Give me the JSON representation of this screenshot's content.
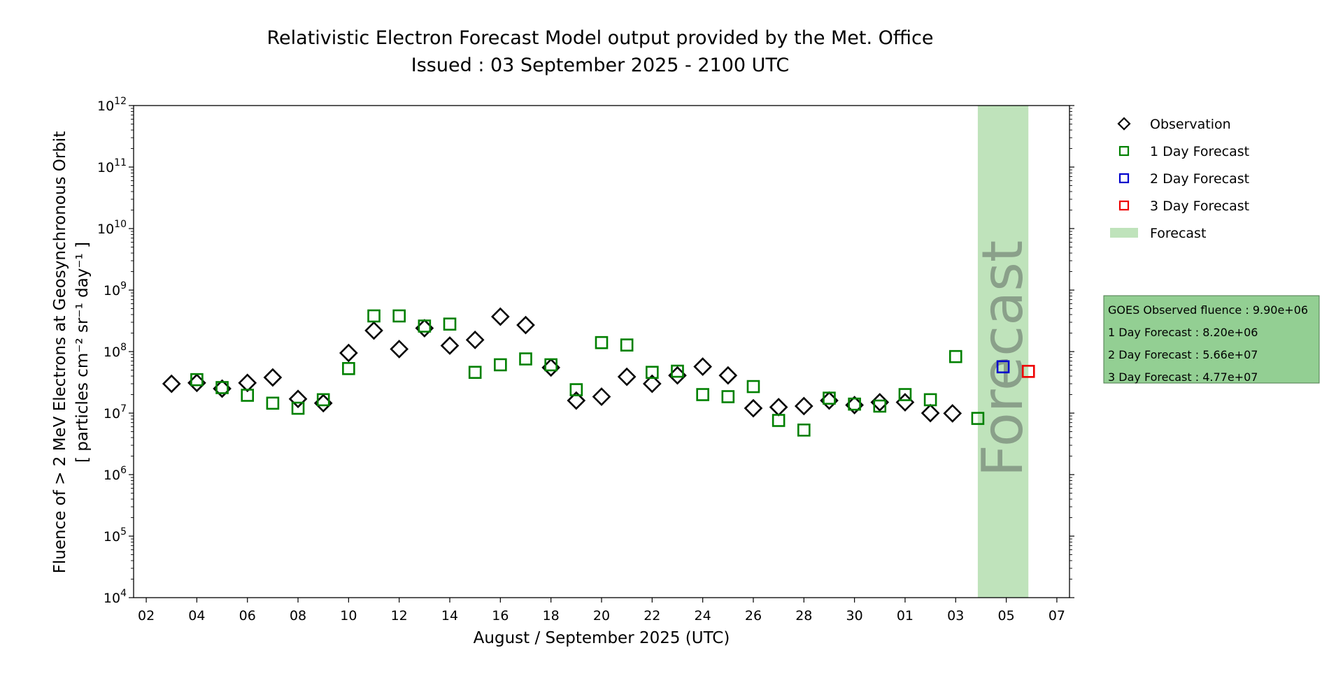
{
  "chart_data": {
    "type": "scatter",
    "title": "Relativistic Electron Forecast Model output provided by the Met. Office",
    "subtitle": "Issued : 03 September 2025 - 2100 UTC",
    "xlabel": "August / September 2025 (UTC)",
    "ylabel_line1": "Fluence of > 2 MeV Electrons at Geosynchronous Orbit",
    "ylabel_line2": "[ particles cm⁻² sr⁻¹ day⁻¹ ]",
    "y_scale": "log",
    "ylim": [
      10000,
      1000000000000
    ],
    "y_ticks": [
      {
        "value": 10000,
        "base": "10",
        "exp": "4"
      },
      {
        "value": 100000,
        "base": "10",
        "exp": "5"
      },
      {
        "value": 1000000,
        "base": "10",
        "exp": "6"
      },
      {
        "value": 10000000,
        "base": "10",
        "exp": "7"
      },
      {
        "value": 100000000,
        "base": "10",
        "exp": "8"
      },
      {
        "value": 1000000000,
        "base": "10",
        "exp": "9"
      },
      {
        "value": 10000000000,
        "base": "10",
        "exp": "10"
      },
      {
        "value": 100000000000,
        "base": "10",
        "exp": "11"
      },
      {
        "value": 1000000000000,
        "base": "10",
        "exp": "12"
      }
    ],
    "xlim": [
      "2025-08-01T12:00",
      "2025-09-07T12:00"
    ],
    "x_ticks": [
      {
        "date": "2025-08-02",
        "label": "02"
      },
      {
        "date": "2025-08-04",
        "label": "04"
      },
      {
        "date": "2025-08-06",
        "label": "06"
      },
      {
        "date": "2025-08-08",
        "label": "08"
      },
      {
        "date": "2025-08-10",
        "label": "10"
      },
      {
        "date": "2025-08-12",
        "label": "12"
      },
      {
        "date": "2025-08-14",
        "label": "14"
      },
      {
        "date": "2025-08-16",
        "label": "16"
      },
      {
        "date": "2025-08-18",
        "label": "18"
      },
      {
        "date": "2025-08-20",
        "label": "20"
      },
      {
        "date": "2025-08-22",
        "label": "22"
      },
      {
        "date": "2025-08-24",
        "label": "24"
      },
      {
        "date": "2025-08-26",
        "label": "26"
      },
      {
        "date": "2025-08-28",
        "label": "28"
      },
      {
        "date": "2025-08-30",
        "label": "30"
      },
      {
        "date": "2025-09-01",
        "label": "01"
      },
      {
        "date": "2025-09-03",
        "label": "03"
      },
      {
        "date": "2025-09-05",
        "label": "05"
      },
      {
        "date": "2025-09-07",
        "label": "07"
      }
    ],
    "forecast_region": {
      "start": "2025-09-03T21:00",
      "end": "2025-09-05T21:00",
      "label": "Forecast",
      "color": "#bfe3bb"
    },
    "series": [
      {
        "name": "Observation",
        "marker": "diamond",
        "color": "#000000",
        "points": [
          {
            "x": "2025-08-03",
            "y": 30000000.0
          },
          {
            "x": "2025-08-04",
            "y": 31000000.0
          },
          {
            "x": "2025-08-05",
            "y": 25000000.0
          },
          {
            "x": "2025-08-06",
            "y": 31000000.0
          },
          {
            "x": "2025-08-07",
            "y": 38000000.0
          },
          {
            "x": "2025-08-08",
            "y": 17000000.0
          },
          {
            "x": "2025-08-09",
            "y": 14500000.0
          },
          {
            "x": "2025-08-10",
            "y": 95000000.0
          },
          {
            "x": "2025-08-11",
            "y": 220000000.0
          },
          {
            "x": "2025-08-12",
            "y": 110000000.0
          },
          {
            "x": "2025-08-13",
            "y": 240000000.0
          },
          {
            "x": "2025-08-14",
            "y": 125000000.0
          },
          {
            "x": "2025-08-15",
            "y": 155000000.0
          },
          {
            "x": "2025-08-16",
            "y": 370000000.0
          },
          {
            "x": "2025-08-17",
            "y": 270000000.0
          },
          {
            "x": "2025-08-18",
            "y": 55000000.0
          },
          {
            "x": "2025-08-19",
            "y": 16000000.0
          },
          {
            "x": "2025-08-20",
            "y": 18500000.0
          },
          {
            "x": "2025-08-21",
            "y": 39000000.0
          },
          {
            "x": "2025-08-22",
            "y": 30000000.0
          },
          {
            "x": "2025-08-23",
            "y": 41000000.0
          },
          {
            "x": "2025-08-24",
            "y": 57000000.0
          },
          {
            "x": "2025-08-25",
            "y": 41000000.0
          },
          {
            "x": "2025-08-26",
            "y": 12000000.0
          },
          {
            "x": "2025-08-27",
            "y": 12500000.0
          },
          {
            "x": "2025-08-28",
            "y": 13000000.0
          },
          {
            "x": "2025-08-29",
            "y": 16000000.0
          },
          {
            "x": "2025-08-30",
            "y": 13500000.0
          },
          {
            "x": "2025-08-31",
            "y": 15000000.0
          },
          {
            "x": "2025-09-01",
            "y": 15000000.0
          },
          {
            "x": "2025-09-02",
            "y": 10000000.0
          },
          {
            "x": "2025-09-02T21:00",
            "y": 9900000.0
          }
        ]
      },
      {
        "name": "1 Day Forecast",
        "marker": "square",
        "color": "#008000",
        "points": [
          {
            "x": "2025-08-04",
            "y": 35000000.0
          },
          {
            "x": "2025-08-05",
            "y": 26000000.0
          },
          {
            "x": "2025-08-06",
            "y": 19500000.0
          },
          {
            "x": "2025-08-07",
            "y": 14500000.0
          },
          {
            "x": "2025-08-08",
            "y": 12000000.0
          },
          {
            "x": "2025-08-09",
            "y": 16500000.0
          },
          {
            "x": "2025-08-10",
            "y": 53000000.0
          },
          {
            "x": "2025-08-11",
            "y": 380000000.0
          },
          {
            "x": "2025-08-12",
            "y": 380000000.0
          },
          {
            "x": "2025-08-13",
            "y": 260000000.0
          },
          {
            "x": "2025-08-14",
            "y": 280000000.0
          },
          {
            "x": "2025-08-15",
            "y": 46000000.0
          },
          {
            "x": "2025-08-16",
            "y": 61000000.0
          },
          {
            "x": "2025-08-17",
            "y": 76000000.0
          },
          {
            "x": "2025-08-18",
            "y": 61000000.0
          },
          {
            "x": "2025-08-19",
            "y": 24000000.0
          },
          {
            "x": "2025-08-20",
            "y": 140000000.0
          },
          {
            "x": "2025-08-21",
            "y": 128000000.0
          },
          {
            "x": "2025-08-22",
            "y": 46000000.0
          },
          {
            "x": "2025-08-23",
            "y": 48000000.0
          },
          {
            "x": "2025-08-24",
            "y": 20000000.0
          },
          {
            "x": "2025-08-25",
            "y": 18500000.0
          },
          {
            "x": "2025-08-26",
            "y": 27000000.0
          },
          {
            "x": "2025-08-27",
            "y": 7600000.0
          },
          {
            "x": "2025-08-28",
            "y": 5300000.0
          },
          {
            "x": "2025-08-29",
            "y": 17500000.0
          },
          {
            "x": "2025-08-30",
            "y": 14000000.0
          },
          {
            "x": "2025-08-31",
            "y": 13000000.0
          },
          {
            "x": "2025-09-01",
            "y": 20000000.0
          },
          {
            "x": "2025-09-02",
            "y": 16500000.0
          },
          {
            "x": "2025-09-03",
            "y": 83000000.0
          },
          {
            "x": "2025-09-03T21:00",
            "y": 8200000.0
          }
        ]
      },
      {
        "name": "2 Day Forecast",
        "marker": "square",
        "color": "#0000cc",
        "points": [
          {
            "x": "2025-09-04T21:00",
            "y": 56600000.0
          }
        ]
      },
      {
        "name": "3 Day Forecast",
        "marker": "square",
        "color": "#ee0000",
        "points": [
          {
            "x": "2025-09-05T21:00",
            "y": 47700000.0
          }
        ]
      }
    ],
    "legend": {
      "placement": "outside-right-top",
      "entries": [
        {
          "label": "Observation",
          "marker": "diamond",
          "color": "#000000"
        },
        {
          "label": "1 Day Forecast",
          "marker": "square",
          "color": "#008000"
        },
        {
          "label": "2 Day Forecast",
          "marker": "square",
          "color": "#0000cc"
        },
        {
          "label": "3 Day Forecast",
          "marker": "square",
          "color": "#ee0000"
        },
        {
          "label": "Forecast",
          "marker": "patch",
          "color": "#bfe3bb"
        }
      ]
    },
    "info_box": {
      "background": "#93cf93",
      "lines": [
        "GOES Observed fluence : 9.90e+06",
        "1 Day Forecast : 8.20e+06",
        "2 Day Forecast : 5.66e+07",
        "3 Day Forecast : 4.77e+07"
      ]
    },
    "grid": false
  }
}
